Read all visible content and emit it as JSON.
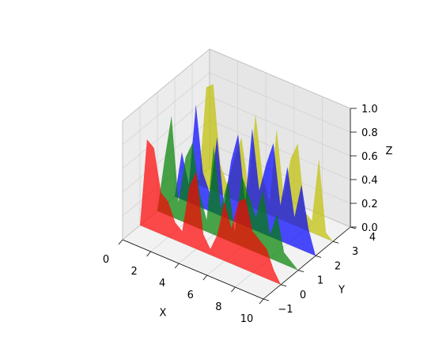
{
  "chart_data": {
    "type": "area",
    "subtype": "3d-polygons",
    "title": "",
    "xlabel": "X",
    "ylabel": "Y",
    "zlabel": "Z",
    "xlim": [
      0,
      10
    ],
    "ylim": [
      -1,
      4
    ],
    "zlim": [
      0,
      1
    ],
    "x_ticks": [
      0,
      2,
      4,
      6,
      8,
      10
    ],
    "y_ticks": [
      -1,
      0,
      1,
      2,
      3,
      4
    ],
    "z_ticks": [
      0.0,
      0.2,
      0.4,
      0.6,
      0.8,
      1.0
    ],
    "x_tick_labels": [
      "0",
      "2",
      "4",
      "6",
      "8",
      "10"
    ],
    "y_tick_labels": [
      "−1",
      "0",
      "1",
      "2",
      "3",
      "4"
    ],
    "z_tick_labels": [
      "0.0",
      "0.2",
      "0.4",
      "0.6",
      "0.8",
      "1.0"
    ],
    "grid": true,
    "legend": "none",
    "x": [
      0,
      0.5,
      1,
      1.5,
      2,
      2.5,
      3,
      3.5,
      4,
      4.5,
      5,
      5.5,
      6,
      6.5,
      7,
      7.5,
      8,
      8.5,
      9,
      9.5,
      10
    ],
    "series": [
      {
        "y": 3,
        "color": "#bfbf00",
        "opacity": 0.7,
        "values": [
          0.0,
          0.05,
          0.85,
          0.9,
          0.25,
          0.1,
          0.35,
          0.55,
          0.15,
          0.8,
          0.3,
          0.1,
          0.75,
          0.2,
          0.55,
          0.7,
          0.15,
          0.1,
          0.65,
          0.05,
          0.0
        ]
      },
      {
        "y": 2,
        "color": "#0000ff",
        "opacity": 0.7,
        "values": [
          0.0,
          0.4,
          0.15,
          0.85,
          0.3,
          0.15,
          0.65,
          0.1,
          0.5,
          0.75,
          0.2,
          0.85,
          0.35,
          0.6,
          0.8,
          0.3,
          0.65,
          0.25,
          0.55,
          0.2,
          0.0
        ]
      },
      {
        "y": 1,
        "color": "#008000",
        "opacity": 0.7,
        "values": [
          0.0,
          0.45,
          0.85,
          0.15,
          0.55,
          0.7,
          0.3,
          0.1,
          0.75,
          0.25,
          0.5,
          0.1,
          0.6,
          0.45,
          0.3,
          0.55,
          0.2,
          0.4,
          0.1,
          0.05,
          0.0
        ]
      },
      {
        "y": 0,
        "color": "#ff0000",
        "opacity": 0.7,
        "values": [
          0.0,
          0.75,
          0.7,
          0.35,
          0.3,
          0.15,
          0.1,
          0.5,
          0.65,
          0.15,
          0.05,
          0.2,
          0.5,
          0.3,
          0.55,
          0.6,
          0.35,
          0.3,
          0.25,
          0.1,
          0.0
        ]
      }
    ]
  }
}
